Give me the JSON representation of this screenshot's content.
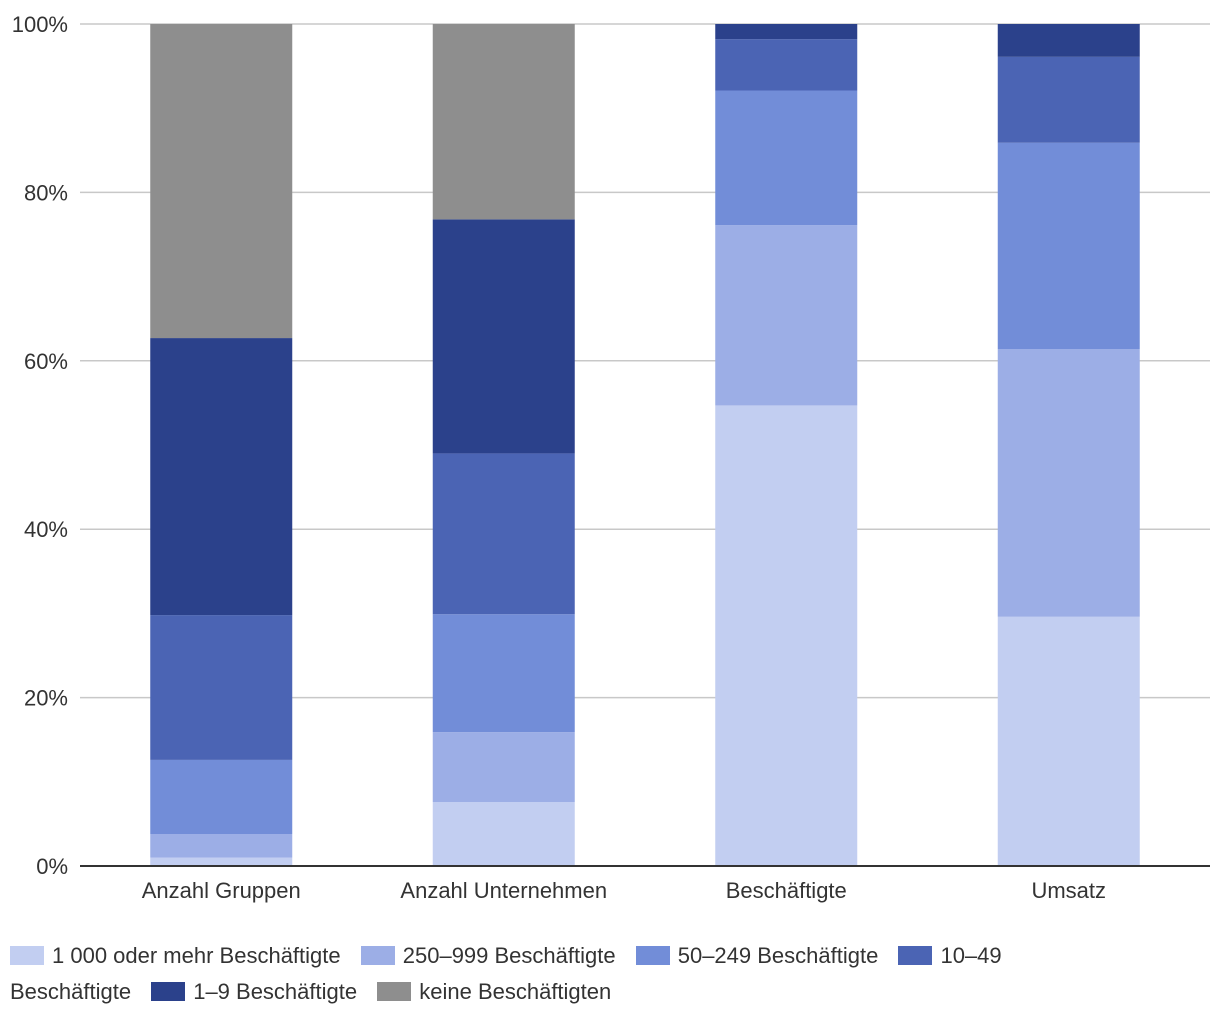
{
  "chart_data": {
    "type": "bar",
    "stacked": true,
    "title": "",
    "xlabel": "",
    "ylabel": "",
    "ylim": [
      0,
      100
    ],
    "yticks": [
      0,
      20,
      40,
      60,
      80,
      100
    ],
    "ytick_labels": [
      "0%",
      "20%",
      "40%",
      "60%",
      "80%",
      "100%"
    ],
    "grid": true,
    "legend_position": "bottom",
    "categories": [
      "Anzahl Gruppen",
      "Anzahl Unternehmen",
      "Beschäftigte",
      "Umsatz"
    ],
    "series": [
      {
        "name": "1 000 oder mehr Beschäftigte",
        "color": "#c2cef1",
        "values": [
          1.0,
          7.6,
          54.7,
          29.6
        ]
      },
      {
        "name": "250–999 Beschäftigte",
        "color": "#9caee6",
        "values": [
          2.8,
          8.3,
          21.4,
          31.8
        ]
      },
      {
        "name": "50–249 Beschäftigte",
        "color": "#728dd8",
        "values": [
          8.8,
          14.0,
          16.0,
          24.5
        ]
      },
      {
        "name": "10–49 Beschäftigte",
        "color": "#4b64b4",
        "values": [
          17.2,
          19.1,
          6.1,
          10.2
        ]
      },
      {
        "name": "1–9 Beschäftigte",
        "color": "#2b418b",
        "values": [
          32.9,
          27.8,
          1.8,
          3.9
        ]
      },
      {
        "name": "keine Beschäftigten",
        "color": "#8e8e8e",
        "values": [
          37.3,
          23.2,
          0.0,
          0.0
        ]
      }
    ]
  }
}
